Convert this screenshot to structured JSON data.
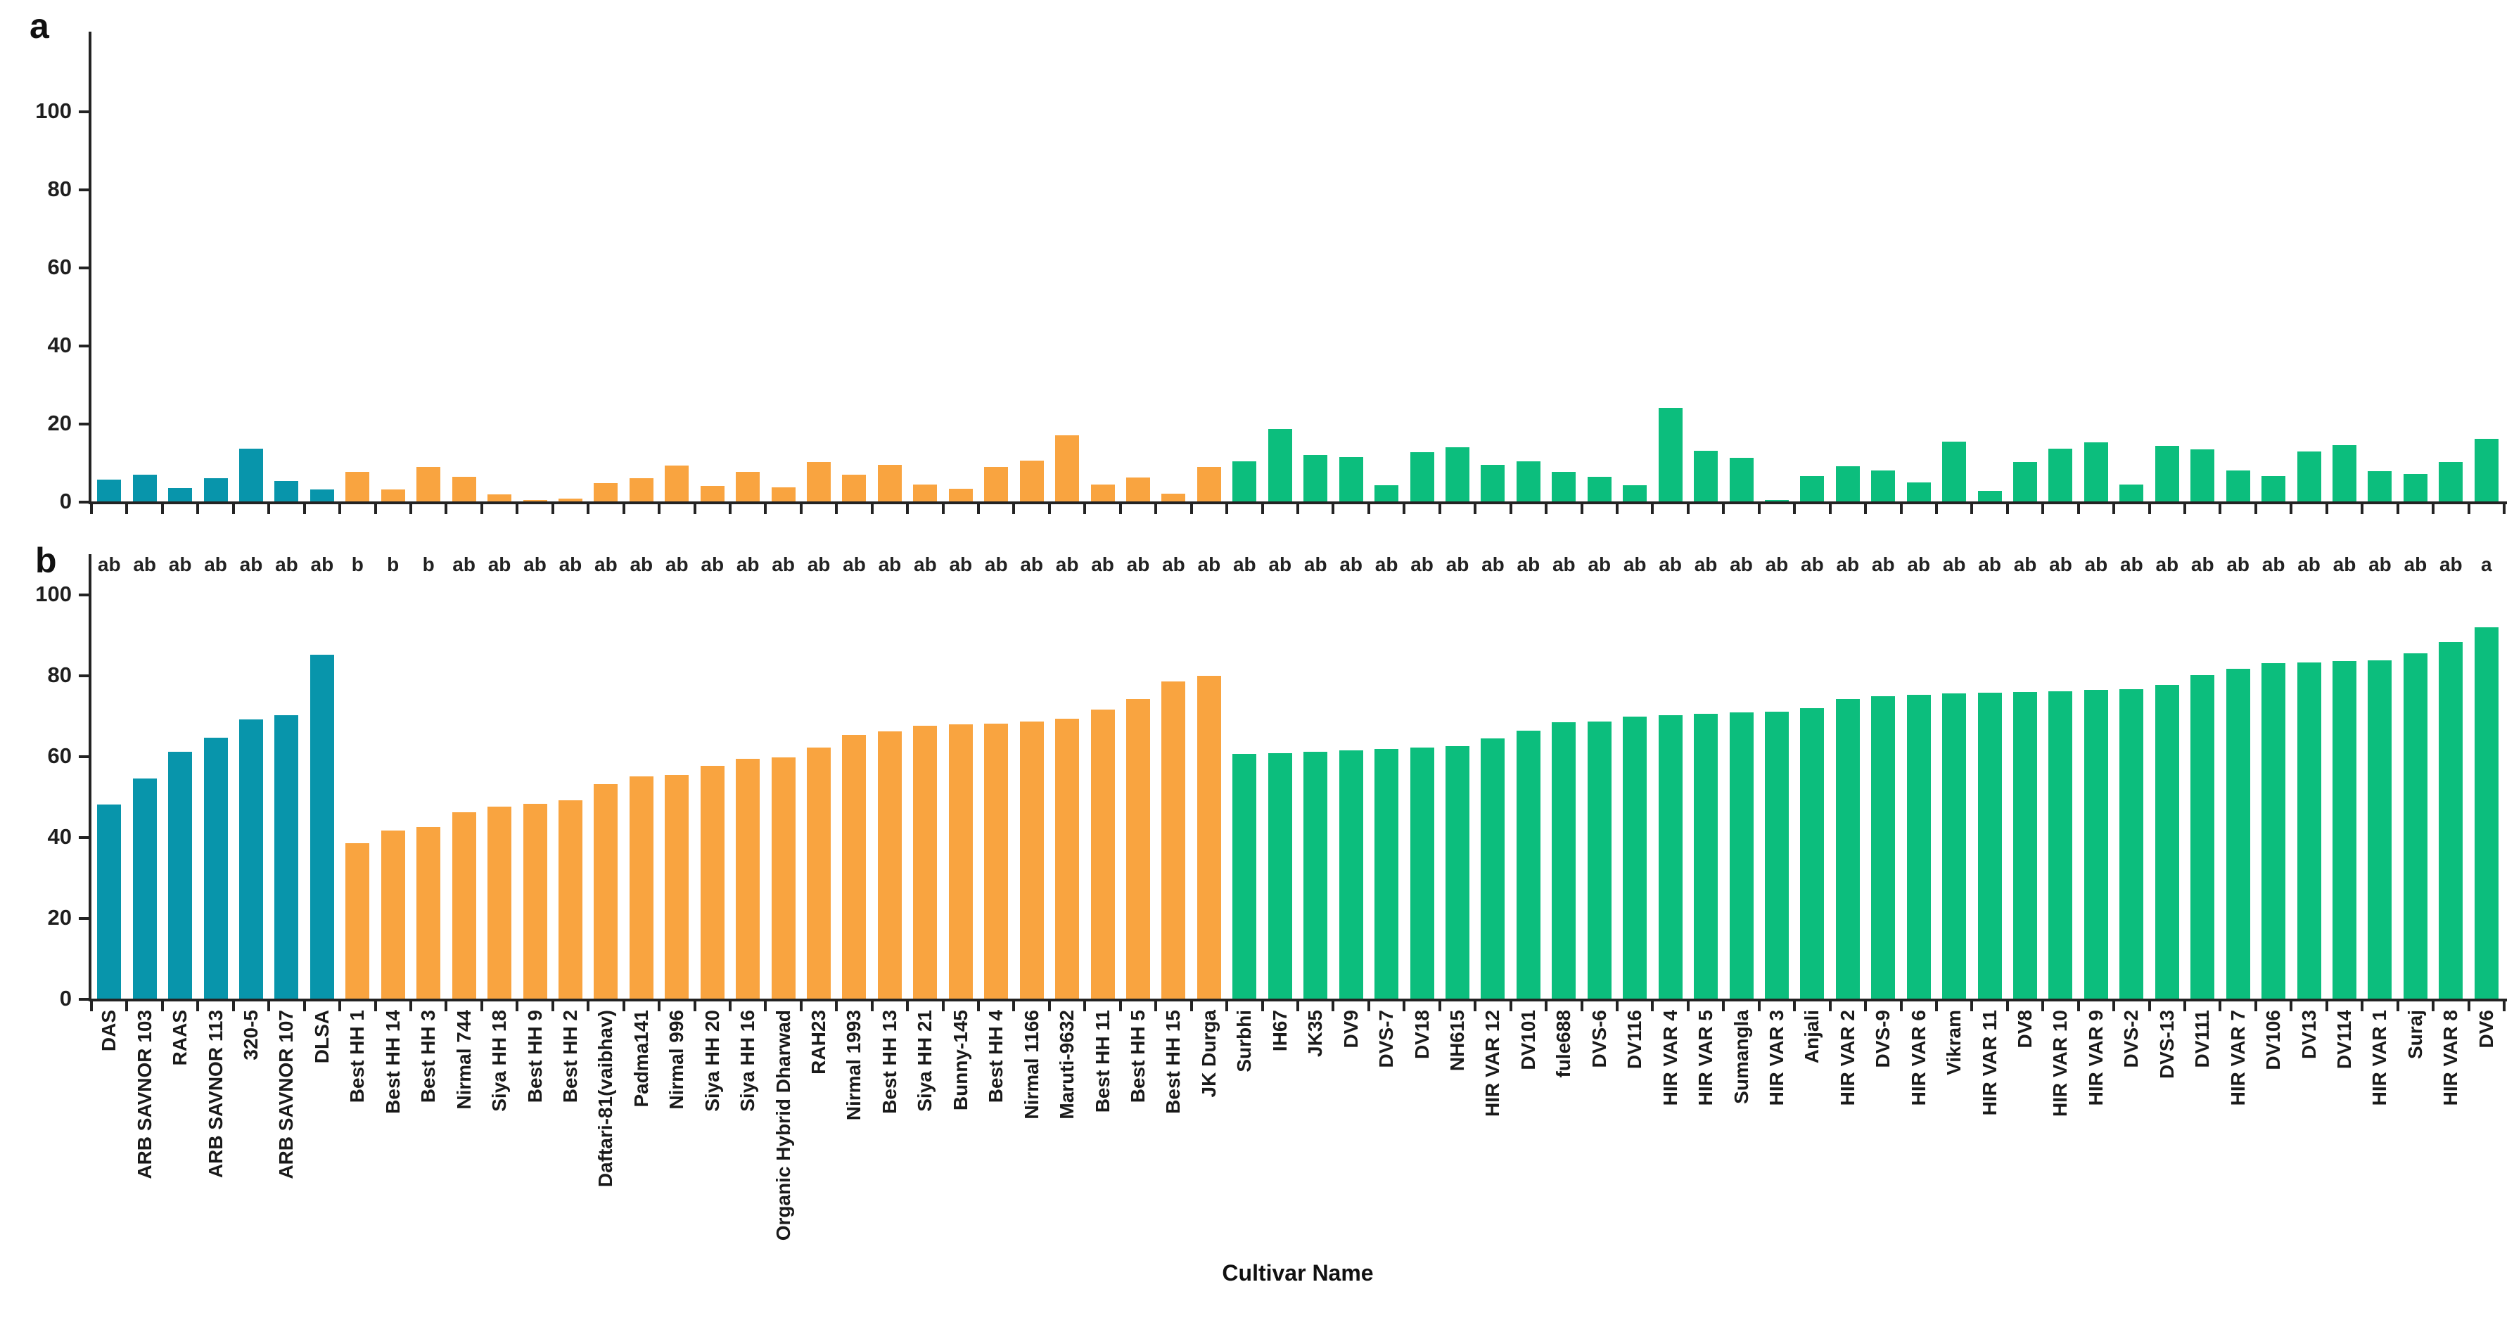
{
  "figure": {
    "panel_a_label": "a",
    "panel_b_label": "b"
  },
  "chart_data": {
    "type": "bar",
    "title": "",
    "xlabel": "Cultivar Name",
    "ylabel": "",
    "ylim": [
      0,
      100
    ],
    "yticks": [
      0,
      20,
      40,
      60,
      80,
      100
    ],
    "grid": false,
    "legend": "none",
    "panels": [
      "a",
      "b"
    ],
    "group_colors": {
      "teal": "#0895AB",
      "orange": "#F9A440",
      "green": "#0CBE7D"
    },
    "cultivars": [
      {
        "label": "DAS",
        "group": "teal",
        "a": 5.5,
        "b": 48.0,
        "letter": "ab"
      },
      {
        "label": "ARB SAVNOR 103",
        "group": "teal",
        "a": 6.9,
        "b": 54.5,
        "letter": "ab"
      },
      {
        "label": "RAAS",
        "group": "teal",
        "a": 3.5,
        "b": 61.0,
        "letter": "ab"
      },
      {
        "label": "ARB SAVNOR 113",
        "group": "teal",
        "a": 6.0,
        "b": 64.5,
        "letter": "ab"
      },
      {
        "label": "320-5",
        "group": "teal",
        "a": 13.5,
        "b": 69.0,
        "letter": "ab"
      },
      {
        "label": "ARB SAVNOR 107",
        "group": "teal",
        "a": 5.3,
        "b": 70.0,
        "letter": "ab"
      },
      {
        "label": "DLSA",
        "group": "teal",
        "a": 3.1,
        "b": 85.0,
        "letter": "ab"
      },
      {
        "label": "Best HH 1",
        "group": "orange",
        "a": 7.5,
        "b": 38.5,
        "letter": "b"
      },
      {
        "label": "Best HH 14",
        "group": "orange",
        "a": 3.0,
        "b": 41.5,
        "letter": "b"
      },
      {
        "label": "Best HH 3",
        "group": "orange",
        "a": 8.9,
        "b": 42.5,
        "letter": "b"
      },
      {
        "label": "Nirmal 744",
        "group": "orange",
        "a": 6.3,
        "b": 46.0,
        "letter": "ab"
      },
      {
        "label": "Siya HH 18",
        "group": "orange",
        "a": 1.8,
        "b": 47.5,
        "letter": "ab"
      },
      {
        "label": "Best HH 9",
        "group": "orange",
        "a": 0.3,
        "b": 48.2,
        "letter": "ab"
      },
      {
        "label": "Best HH 2",
        "group": "orange",
        "a": 0.8,
        "b": 49.0,
        "letter": "ab"
      },
      {
        "label": "Daftari-81(vaibhav)",
        "group": "orange",
        "a": 4.7,
        "b": 53.0,
        "letter": "ab"
      },
      {
        "label": "Padma141",
        "group": "orange",
        "a": 6.0,
        "b": 55.0,
        "letter": "ab"
      },
      {
        "label": "Nirmal 996",
        "group": "orange",
        "a": 9.1,
        "b": 55.3,
        "letter": "ab"
      },
      {
        "label": "Siya HH 20",
        "group": "orange",
        "a": 4.0,
        "b": 57.5,
        "letter": "ab"
      },
      {
        "label": "Siya HH 16",
        "group": "orange",
        "a": 7.6,
        "b": 59.3,
        "letter": "ab"
      },
      {
        "label": "Organic Hybrid Dharwad",
        "group": "orange",
        "a": 3.6,
        "b": 59.6,
        "letter": "ab"
      },
      {
        "label": "RAH23",
        "group": "orange",
        "a": 10.1,
        "b": 62.0,
        "letter": "ab"
      },
      {
        "label": "Nirmal 1993",
        "group": "orange",
        "a": 6.9,
        "b": 65.3,
        "letter": "ab"
      },
      {
        "label": "Best HH 13",
        "group": "orange",
        "a": 9.3,
        "b": 66.0,
        "letter": "ab"
      },
      {
        "label": "Siya HH 21",
        "group": "orange",
        "a": 4.3,
        "b": 67.5,
        "letter": "ab"
      },
      {
        "label": "Bunny-145",
        "group": "orange",
        "a": 3.3,
        "b": 67.8,
        "letter": "ab"
      },
      {
        "label": "Best HH 4",
        "group": "orange",
        "a": 8.9,
        "b": 68.0,
        "letter": "ab"
      },
      {
        "label": "Nirmal 1166",
        "group": "orange",
        "a": 10.5,
        "b": 68.5,
        "letter": "ab"
      },
      {
        "label": "Maruti-9632",
        "group": "orange",
        "a": 16.9,
        "b": 69.3,
        "letter": "ab"
      },
      {
        "label": "Best HH 11",
        "group": "orange",
        "a": 4.4,
        "b": 71.5,
        "letter": "ab"
      },
      {
        "label": "Best HH 5",
        "group": "orange",
        "a": 6.1,
        "b": 74.0,
        "letter": "ab"
      },
      {
        "label": "Best HH 15",
        "group": "orange",
        "a": 1.9,
        "b": 78.5,
        "letter": "ab"
      },
      {
        "label": "JK Durga",
        "group": "orange",
        "a": 8.9,
        "b": 79.8,
        "letter": "ab"
      },
      {
        "label": "Surbhi",
        "group": "green",
        "a": 10.3,
        "b": 60.5,
        "letter": "ab"
      },
      {
        "label": "IH67",
        "group": "green",
        "a": 18.5,
        "b": 60.7,
        "letter": "ab"
      },
      {
        "label": "JK35",
        "group": "green",
        "a": 11.9,
        "b": 61.0,
        "letter": "ab"
      },
      {
        "label": "DV9",
        "group": "green",
        "a": 11.3,
        "b": 61.4,
        "letter": "ab"
      },
      {
        "label": "DVS-7",
        "group": "green",
        "a": 4.1,
        "b": 61.8,
        "letter": "ab"
      },
      {
        "label": "DV18",
        "group": "green",
        "a": 12.6,
        "b": 62.0,
        "letter": "ab"
      },
      {
        "label": "NH615",
        "group": "green",
        "a": 13.8,
        "b": 62.5,
        "letter": "ab"
      },
      {
        "label": "HIR VAR 12",
        "group": "green",
        "a": 9.4,
        "b": 64.4,
        "letter": "ab"
      },
      {
        "label": "DV101",
        "group": "green",
        "a": 10.3,
        "b": 66.2,
        "letter": "ab"
      },
      {
        "label": "fule688",
        "group": "green",
        "a": 7.5,
        "b": 68.3,
        "letter": "ab"
      },
      {
        "label": "DVS-6",
        "group": "green",
        "a": 6.3,
        "b": 68.6,
        "letter": "ab"
      },
      {
        "label": "DV116",
        "group": "green",
        "a": 4.2,
        "b": 69.8,
        "letter": "ab"
      },
      {
        "label": "HIR VAR 4",
        "group": "green",
        "a": 24.0,
        "b": 70.0,
        "letter": "ab"
      },
      {
        "label": "HIR VAR 5",
        "group": "green",
        "a": 12.9,
        "b": 70.4,
        "letter": "ab"
      },
      {
        "label": "Sumangla",
        "group": "green",
        "a": 11.2,
        "b": 70.8,
        "letter": "ab"
      },
      {
        "label": "HIR VAR 3",
        "group": "green",
        "a": 0.4,
        "b": 71.0,
        "letter": "ab"
      },
      {
        "label": "Anjali",
        "group": "green",
        "a": 6.5,
        "b": 71.8,
        "letter": "ab"
      },
      {
        "label": "HIR VAR 2",
        "group": "green",
        "a": 9.0,
        "b": 74.0,
        "letter": "ab"
      },
      {
        "label": "DVS-9",
        "group": "green",
        "a": 7.9,
        "b": 74.8,
        "letter": "ab"
      },
      {
        "label": "HIR VAR 6",
        "group": "green",
        "a": 4.9,
        "b": 75.2,
        "letter": "ab"
      },
      {
        "label": "Vikram",
        "group": "green",
        "a": 15.3,
        "b": 75.5,
        "letter": "ab"
      },
      {
        "label": "HIR VAR 11",
        "group": "green",
        "a": 2.7,
        "b": 75.7,
        "letter": "ab"
      },
      {
        "label": "DV8",
        "group": "green",
        "a": 10.0,
        "b": 75.9,
        "letter": "ab"
      },
      {
        "label": "HIR VAR 10",
        "group": "green",
        "a": 13.6,
        "b": 76.0,
        "letter": "ab"
      },
      {
        "label": "HIR VAR 9",
        "group": "green",
        "a": 15.2,
        "b": 76.3,
        "letter": "ab"
      },
      {
        "label": "DVS-2",
        "group": "green",
        "a": 4.4,
        "b": 76.6,
        "letter": "ab"
      },
      {
        "label": "DVS-13",
        "group": "green",
        "a": 14.3,
        "b": 77.5,
        "letter": "ab"
      },
      {
        "label": "DV111",
        "group": "green",
        "a": 13.3,
        "b": 80.0,
        "letter": "ab"
      },
      {
        "label": "HIR VAR 7",
        "group": "green",
        "a": 7.9,
        "b": 81.5,
        "letter": "ab"
      },
      {
        "label": "DV106",
        "group": "green",
        "a": 6.4,
        "b": 83.0,
        "letter": "ab"
      },
      {
        "label": "DV13",
        "group": "green",
        "a": 12.8,
        "b": 83.2,
        "letter": "ab"
      },
      {
        "label": "DV114",
        "group": "green",
        "a": 14.4,
        "b": 83.4,
        "letter": "ab"
      },
      {
        "label": "HIR VAR 1",
        "group": "green",
        "a": 7.8,
        "b": 83.6,
        "letter": "ab"
      },
      {
        "label": "Suraj",
        "group": "green",
        "a": 7.0,
        "b": 85.4,
        "letter": "ab"
      },
      {
        "label": "HIR VAR 8",
        "group": "green",
        "a": 10.1,
        "b": 88.2,
        "letter": "ab"
      },
      {
        "label": "DV6",
        "group": "green",
        "a": 16.1,
        "b": 91.8,
        "letter": "a"
      }
    ]
  }
}
